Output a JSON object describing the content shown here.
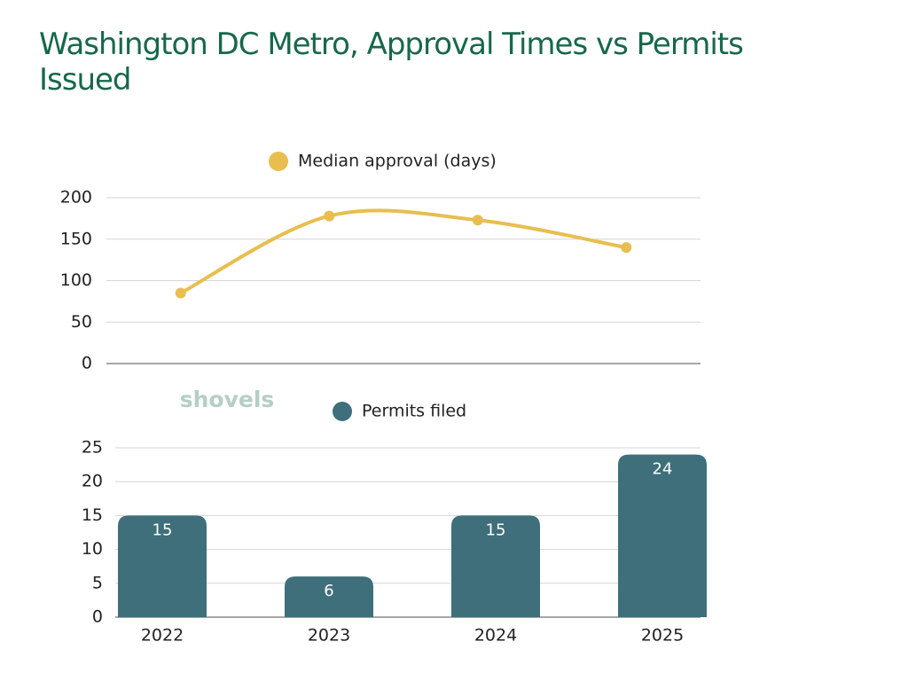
{
  "title": "Washington DC Metro, Approval Times vs Permits Issued",
  "watermark": "shovels",
  "chart_data": [
    {
      "type": "line",
      "series": [
        {
          "name": "Median approval (days)",
          "color": "#e8be4f",
          "values": [
            85,
            178,
            173,
            140
          ]
        }
      ],
      "ylim": [
        0,
        200
      ],
      "yticks": [
        0,
        50,
        100,
        150,
        200
      ],
      "grid": true,
      "legend": "top"
    },
    {
      "type": "bar",
      "categories": [
        "2022",
        "2023",
        "2024",
        "2025"
      ],
      "series": [
        {
          "name": "Permits filed",
          "color": "#3e6f7b",
          "values": [
            15,
            6,
            15,
            24
          ]
        }
      ],
      "ylim": [
        0,
        25
      ],
      "yticks": [
        0,
        5,
        10,
        15,
        20,
        25
      ],
      "grid": true,
      "legend": "top"
    }
  ]
}
